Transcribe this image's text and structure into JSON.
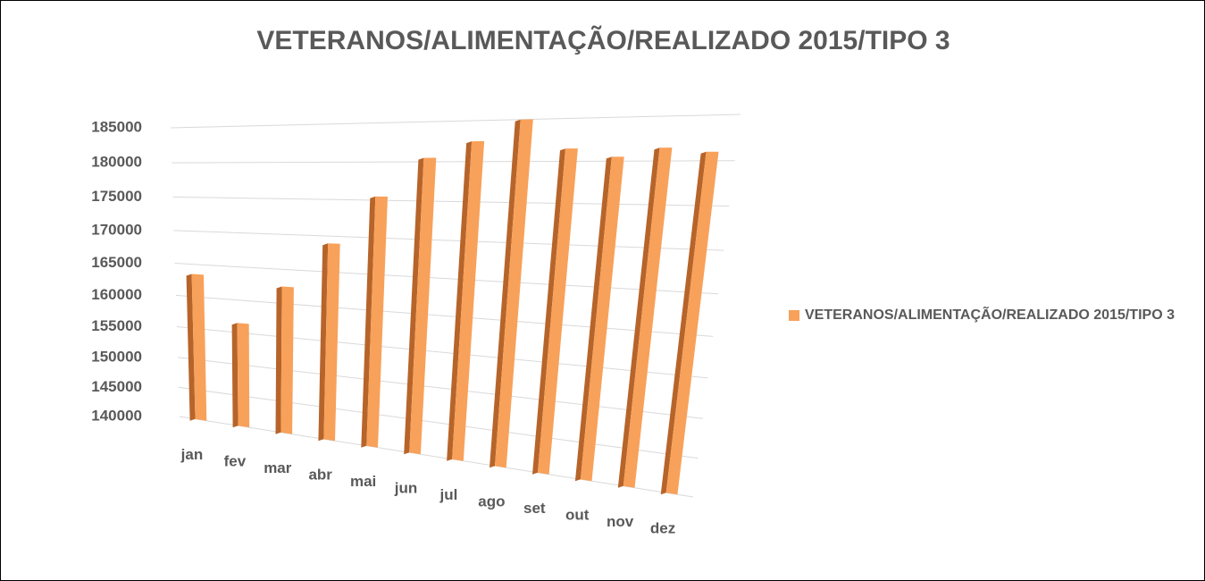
{
  "chart_data": {
    "type": "bar3d",
    "title": "VETERANOS/ALIMENTAÇÃO/REALIZADO 2015/TIPO 3",
    "categories": [
      "jan",
      "fev",
      "mar",
      "abr",
      "mai",
      "jun",
      "jul",
      "ago",
      "set",
      "out",
      "nov",
      "dez"
    ],
    "series": [
      {
        "name": "VETERANOS/ALIMENTAÇÃO/REALIZADO 2015/TIPO 3",
        "color": "#f8a15a",
        "values": [
          163500,
          156500,
          162500,
          169000,
          175500,
          180500,
          182500,
          185000,
          181500,
          180500,
          181500,
          181000
        ]
      }
    ],
    "ylim": [
      140000,
      185000
    ],
    "yticks": [
      140000,
      145000,
      150000,
      155000,
      160000,
      165000,
      170000,
      175000,
      180000,
      185000
    ],
    "grid": true,
    "legend": "right"
  }
}
